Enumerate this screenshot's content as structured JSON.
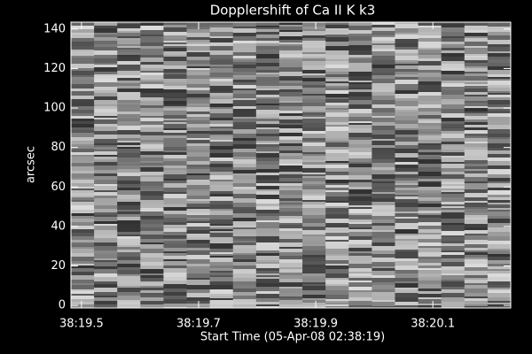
{
  "chart_data": {
    "type": "heatmap",
    "title": "Dopplershift of Ca II K k3",
    "xlabel": "Start Time (05-Apr-08 02:38:19)",
    "ylabel": "arcsec",
    "xlim": [
      19.482,
      20.233
    ],
    "xticks": [
      {
        "value": 19.5,
        "label": "38:19.5"
      },
      {
        "value": 19.7,
        "label": "38:19.7"
      },
      {
        "value": 19.9,
        "label": "38:19.9"
      },
      {
        "value": 20.1,
        "label": "38:20.1"
      }
    ],
    "ylim": [
      -1.3,
      143.5
    ],
    "yticks": [
      0,
      20,
      40,
      60,
      80,
      100,
      120,
      140
    ]
  }
}
